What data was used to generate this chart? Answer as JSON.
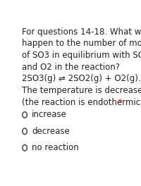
{
  "background_color": "#ffffff",
  "asterisk_color": "#ff0000",
  "options": [
    "increase",
    "decrease",
    "no reaction"
  ],
  "text_color": "#212121",
  "font_size": 8.5,
  "circle_color": "#555555",
  "equilibrium_arrow": "⇌"
}
